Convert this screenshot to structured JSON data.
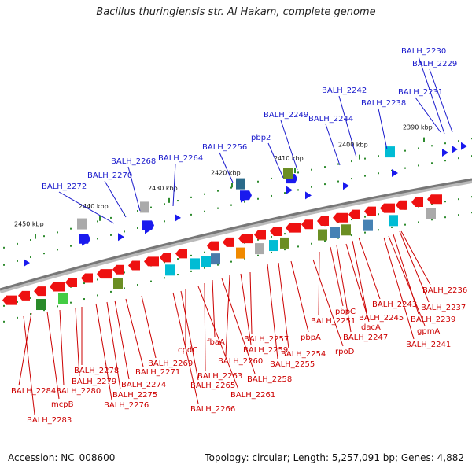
{
  "title": "Bacillus thuringiensis str. Al Hakam, complete genome",
  "accession": "Accession: NC_008600",
  "topology": "Topology: circular; Length: 5,257,091 bp; Genes: 4,882",
  "colors": {
    "upper_label": "#1a1acc",
    "lower_label": "#cc0000",
    "backbone": "#777777",
    "tick": "#2e8b2e",
    "forward_gene": "#1a1aee",
    "reverse_gene": "#ee1111"
  },
  "kbp_ticks": [
    "2390 kbp",
    "2400 kbp",
    "2410 kbp",
    "2420 kbp",
    "2430 kbp",
    "2440 kbp",
    "2450 kbp"
  ],
  "upper_labels": [
    "BALH_2230",
    "BALH_2229",
    "BALH_2231",
    "BALH_2238",
    "BALH_2242",
    "BALH_2244",
    "BALH_2249",
    "pbp2",
    "BALH_2256",
    "BALH_2264",
    "BALH_2268",
    "BALH_2270",
    "BALH_2272"
  ],
  "lower_labels": [
    "BALH_2236",
    "BALH_2237",
    "BALH_2239",
    "gpmA",
    "BALH_2241",
    "BALH_2243",
    "BALH_2245",
    "dacA",
    "BALH_2247",
    "pbpC",
    "BALH_2251",
    "rpoD",
    "pbpA",
    "BALH_2254",
    "BALH_2255",
    "BALH_2257",
    "BALH_2259",
    "BALH_2260",
    "BALH_2258",
    "fbaA",
    "BALH_2263",
    "BALH_2261",
    "cpdC",
    "BALH_2265",
    "BALH_2266",
    "BALH_2269",
    "BALH_2271",
    "BALH_2274",
    "BALH_2275",
    "BALH_2276",
    "BALH_2278",
    "BALH_2279",
    "BALH_2280",
    "mcpB",
    "BALH_2284",
    "BALH_2283"
  ]
}
